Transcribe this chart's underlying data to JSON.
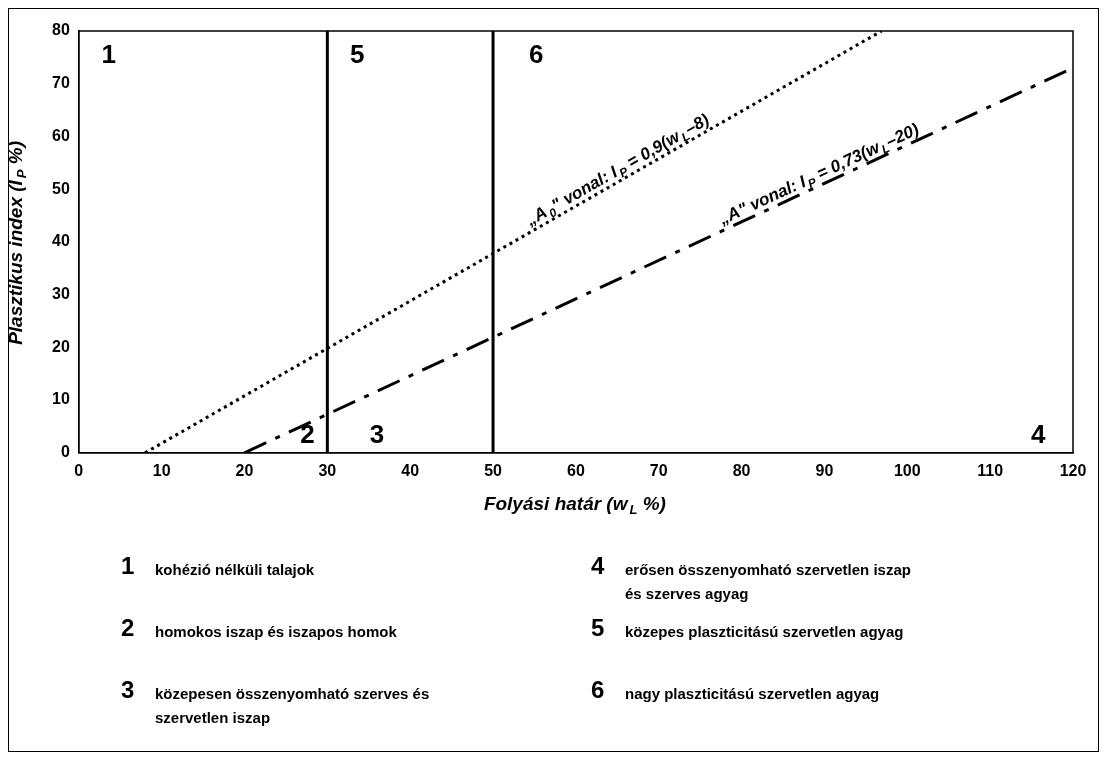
{
  "chart_data": {
    "type": "line",
    "xlabel": "Folyási határ (w$_{L}$ %)",
    "ylabel": "Plasztikus index (I$_{P}$ %)",
    "xlim": [
      0,
      120
    ],
    "xticks": [
      0,
      10,
      20,
      30,
      40,
      50,
      60,
      70,
      80,
      90,
      100,
      110,
      120
    ],
    "ylim": [
      0,
      80
    ],
    "yticks": [
      0,
      10,
      20,
      30,
      40,
      50,
      60,
      70,
      80
    ],
    "grid": false,
    "legend": false,
    "marker": "none",
    "series": [
      {
        "name": "„A$_{0}$\" vonal: I$_{P}$ = 0,9(w$_{L}$–8)",
        "color": "#000000",
        "line_style": "dotted",
        "x": [
          8,
          96.9
        ],
        "values": [
          0,
          80
        ]
      },
      {
        "name": "„A\" vonal: I$_{P}$ = 0,73(w$_{L}$–20)",
        "color": "#000000",
        "line_style": "dashed",
        "x": [
          20,
          120
        ],
        "values": [
          0,
          73
        ]
      }
    ],
    "ref_lines": [
      {
        "axis": "x",
        "value": 30,
        "color": "#000000",
        "line_style": "solid"
      },
      {
        "axis": "x",
        "value": 50,
        "color": "#000000",
        "line_style": "solid"
      }
    ],
    "annotations": [
      "1",
      "5",
      "6",
      "2",
      "3",
      "4",
      "1 kohézió nélküli talajok",
      "2 homokos iszap és iszapos homok",
      "3 közepesen összenyomható szerves és szervetlen iszap",
      "4 erősen összenyomható szervetlen iszap és szerves agyag",
      "5 közepes plaszticitású szervetlen agyag",
      "6 nagy plaszticitású szervetlen agyag"
    ]
  }
}
